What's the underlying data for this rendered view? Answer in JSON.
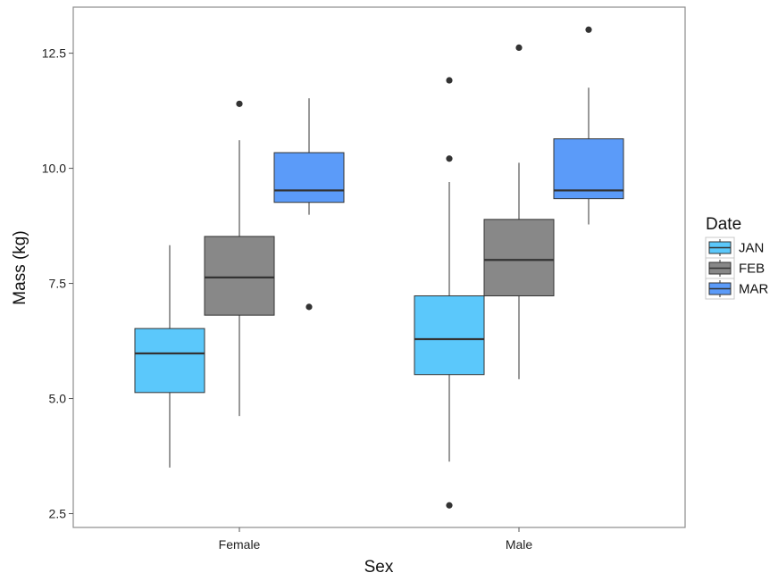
{
  "chart_data": {
    "type": "boxplot",
    "title": "",
    "xlabel": "Sex",
    "ylabel": "Mass (kg)",
    "categories": [
      "Female",
      "Male"
    ],
    "ylim": [
      2.2,
      13.5
    ],
    "yticks": [
      2.5,
      5.0,
      7.5,
      10.0,
      12.5
    ],
    "ytick_labels": [
      "2.5",
      "5.0",
      "7.5",
      "10.0",
      "12.5"
    ],
    "grid": false,
    "legend": {
      "title": "Date",
      "placement": "right"
    },
    "series": [
      {
        "name": "JAN",
        "color": "#5BC8FB",
        "boxes": [
          {
            "category": "Female",
            "whisker_low": 3.5,
            "q1": 5.13,
            "median": 5.98,
            "q3": 6.52,
            "whisker_high": 8.33,
            "outliers": []
          },
          {
            "category": "Male",
            "whisker_low": 3.63,
            "q1": 5.52,
            "median": 6.29,
            "q3": 7.23,
            "whisker_high": 9.7,
            "outliers": [
              2.68,
              10.21,
              11.91
            ]
          }
        ]
      },
      {
        "name": "FEB",
        "color": "#888888",
        "boxes": [
          {
            "category": "Female",
            "whisker_low": 4.62,
            "q1": 6.81,
            "median": 7.63,
            "q3": 8.52,
            "whisker_high": 10.61,
            "outliers": [
              11.4
            ]
          },
          {
            "category": "Male",
            "whisker_low": 5.42,
            "q1": 7.23,
            "median": 8.01,
            "q3": 8.89,
            "whisker_high": 10.12,
            "outliers": [
              12.62
            ]
          }
        ]
      },
      {
        "name": "MAR",
        "color": "#5B9BF9",
        "boxes": [
          {
            "category": "Female",
            "whisker_low": 8.99,
            "q1": 9.26,
            "median": 9.52,
            "q3": 10.34,
            "whisker_high": 11.52,
            "outliers": [
              6.99
            ]
          },
          {
            "category": "Male",
            "whisker_low": 8.78,
            "q1": 9.34,
            "median": 9.52,
            "q3": 10.64,
            "whisker_high": 11.75,
            "outliers": [
              13.01
            ]
          }
        ]
      }
    ]
  }
}
